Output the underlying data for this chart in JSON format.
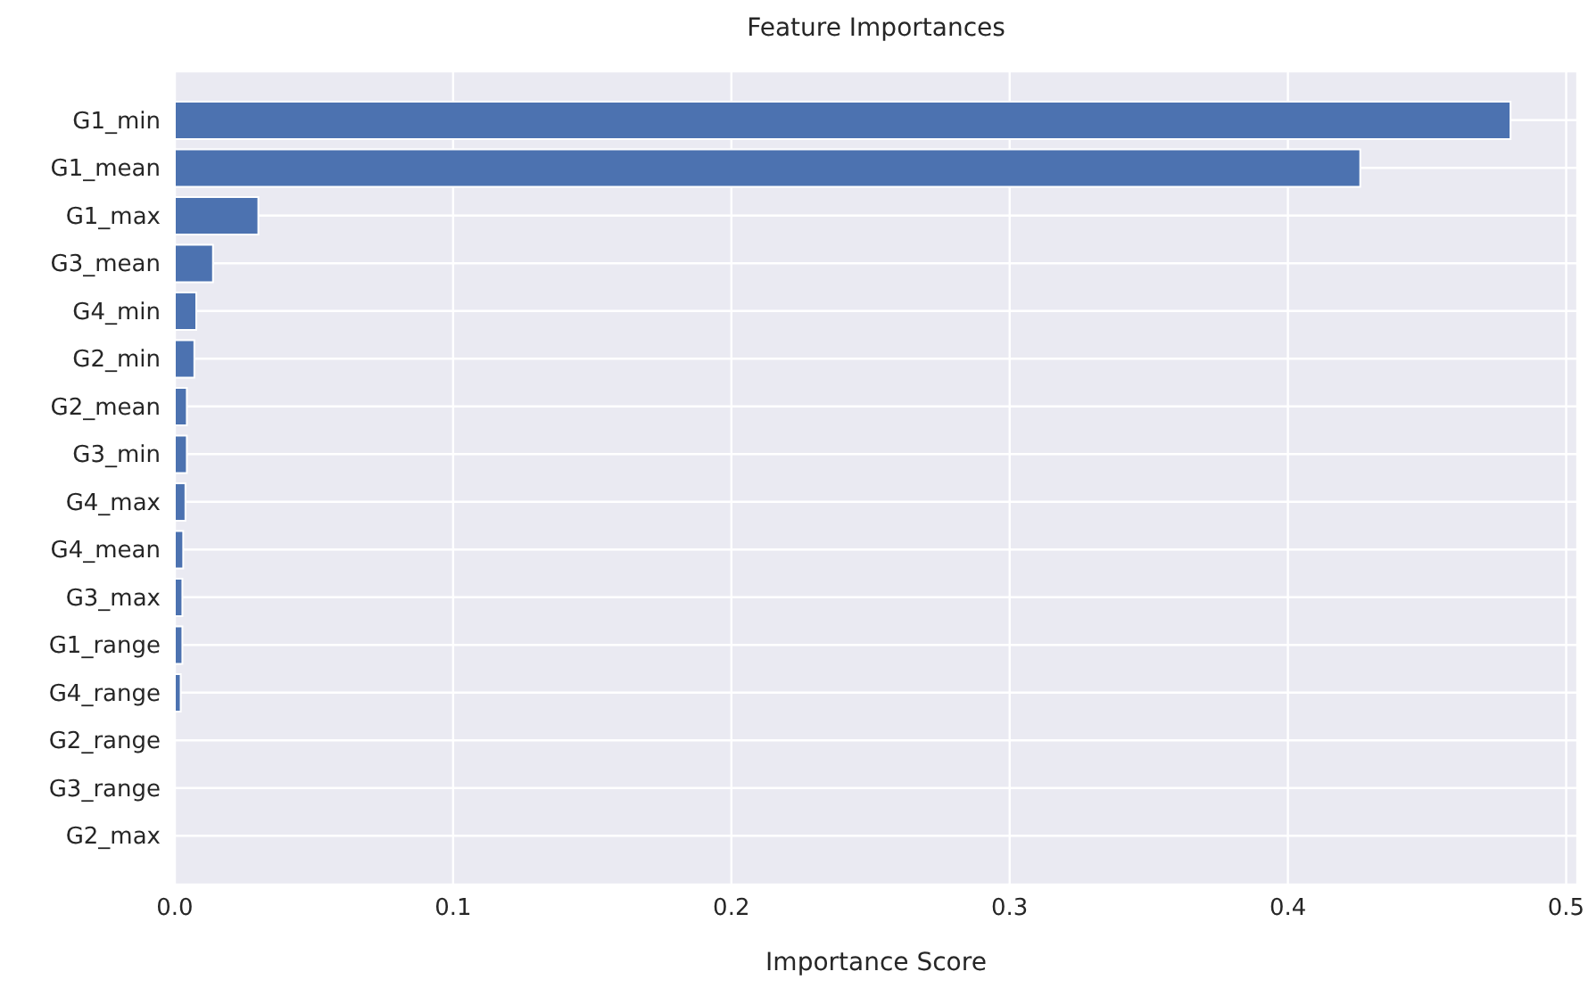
{
  "chart_data": {
    "type": "bar",
    "orientation": "horizontal",
    "title": "Feature Importances",
    "xlabel": "Importance Score",
    "categories": [
      "G1_min",
      "G1_mean",
      "G1_max",
      "G3_mean",
      "G4_min",
      "G2_min",
      "G2_mean",
      "G3_min",
      "G4_max",
      "G4_mean",
      "G3_max",
      "G1_range",
      "G4_range",
      "G2_range",
      "G3_range",
      "G2_max"
    ],
    "values": [
      0.48,
      0.426,
      0.03,
      0.0137,
      0.0077,
      0.007,
      0.0043,
      0.0043,
      0.0038,
      0.003,
      0.0027,
      0.0027,
      0.0021,
      null,
      null,
      null
    ],
    "color": "#4c72b0",
    "xlim": [
      0,
      0.504
    ],
    "xticks": [
      {
        "value": 0,
        "label": "0.0"
      },
      0.1,
      0.2,
      0.3,
      0.4,
      0.5
    ],
    "grid": true
  }
}
